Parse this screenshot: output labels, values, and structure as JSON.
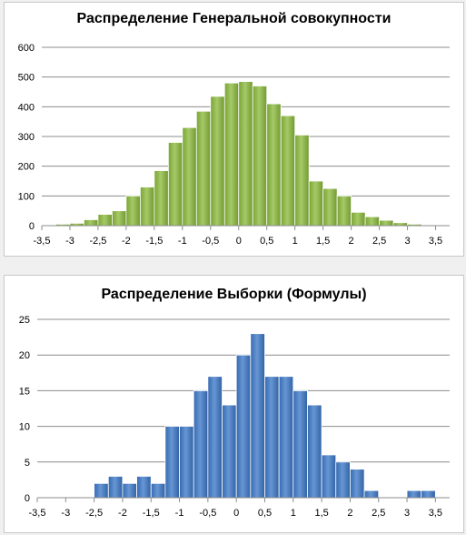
{
  "chart_data": [
    {
      "type": "bar",
      "title": "Распределение Генеральной совокупности",
      "x_ticks": [
        "-3,5",
        "-3",
        "-2,5",
        "-2",
        "-1,5",
        "-1",
        "-0,5",
        "0",
        "0,5",
        "1",
        "1,5",
        "2",
        "2,5",
        "3",
        "3,5"
      ],
      "y_ticks": [
        "0",
        "100",
        "200",
        "300",
        "400",
        "500",
        "600"
      ],
      "ylim": [
        0,
        600
      ],
      "xlim": [
        -3.5,
        3.75
      ],
      "bin_width": 0.25,
      "bin_starts": [
        -3.25,
        -3.0,
        -2.75,
        -2.5,
        -2.25,
        -2.0,
        -1.75,
        -1.5,
        -1.25,
        -1.0,
        -0.75,
        -0.5,
        -0.25,
        0.0,
        0.25,
        0.5,
        0.75,
        1.0,
        1.25,
        1.5,
        1.75,
        2.0,
        2.25,
        2.5,
        2.75,
        3.0
      ],
      "values": [
        5,
        8,
        20,
        38,
        50,
        100,
        130,
        185,
        280,
        330,
        385,
        435,
        480,
        485,
        470,
        410,
        370,
        305,
        150,
        125,
        100,
        45,
        30,
        18,
        10,
        5
      ],
      "color": "#8bba3c",
      "gridlines": true
    },
    {
      "type": "bar",
      "title": "Распределение Выборки (Формулы)",
      "x_ticks": [
        "-3,5",
        "-3",
        "-2,5",
        "-2",
        "-1,5",
        "-1",
        "-0,5",
        "0",
        "0,5",
        "1",
        "1,5",
        "2",
        "2,5",
        "3",
        "3,5"
      ],
      "y_ticks": [
        "0",
        "5",
        "10",
        "15",
        "20",
        "25"
      ],
      "ylim": [
        0,
        25
      ],
      "xlim": [
        -3.5,
        3.75
      ],
      "bin_width": 0.25,
      "bin_starts": [
        -2.5,
        -2.25,
        -2.0,
        -1.75,
        -1.5,
        -1.25,
        -1.0,
        -0.75,
        -0.5,
        -0.25,
        0.0,
        0.25,
        0.5,
        0.75,
        1.0,
        1.25,
        1.5,
        1.75,
        2.0,
        2.25,
        2.5,
        2.75,
        3.0,
        3.25
      ],
      "values": [
        2,
        3,
        2,
        3,
        2,
        10,
        10,
        15,
        17,
        13,
        20,
        23,
        17,
        17,
        15,
        13,
        6,
        5,
        4,
        1,
        0,
        0,
        1,
        1
      ],
      "color": "#3c78c8",
      "gridlines": true
    }
  ]
}
